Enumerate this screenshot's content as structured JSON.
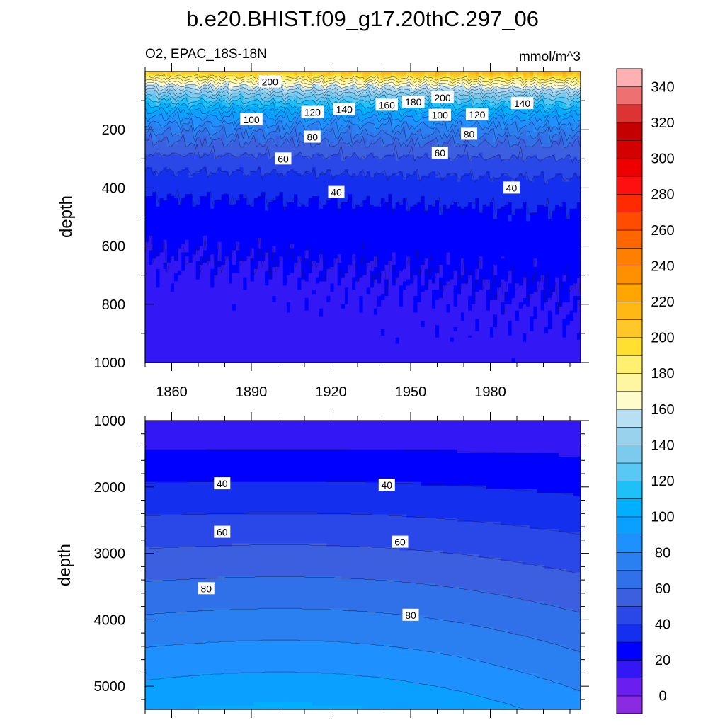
{
  "chart_data": {
    "type": "contour",
    "title": "b.e20.BHIST.f09_g17.20thC.297_06",
    "variable_label": "O2, EPAC_18S-18N",
    "units": "mmol/m^3",
    "colorbar": {
      "levels": [
        0,
        10,
        20,
        30,
        40,
        50,
        60,
        70,
        80,
        90,
        100,
        110,
        120,
        130,
        140,
        150,
        160,
        170,
        180,
        190,
        200,
        210,
        220,
        230,
        240,
        250,
        260,
        270,
        280,
        290,
        300,
        310,
        320,
        330,
        340,
        350
      ],
      "tick_labels": [
        "0",
        "20",
        "40",
        "60",
        "80",
        "100",
        "120",
        "140",
        "160",
        "180",
        "200",
        "220",
        "240",
        "260",
        "280",
        "300",
        "320",
        "340"
      ],
      "colors": [
        "#8a2be2",
        "#6a1ef0",
        "#3318f5",
        "#0000ff",
        "#1430ee",
        "#2a48e8",
        "#3c5fe0",
        "#3070e8",
        "#2a80f0",
        "#1e90ff",
        "#0aa0ff",
        "#00b0ff",
        "#1ec0f8",
        "#5ac8f4",
        "#7ccaee",
        "#98d2ec",
        "#b8dff2",
        "#fffccc",
        "#fff6a0",
        "#fff070",
        "#ffe030",
        "#ffc828",
        "#ffb814",
        "#ffa500",
        "#ff9000",
        "#ff7f00",
        "#ff6600",
        "#ff4c00",
        "#ff2a00",
        "#ff1010",
        "#ee0000",
        "#d40000",
        "#c40000",
        "#dd3333",
        "#ee7070",
        "#ffb0b0"
      ]
    },
    "panels": [
      {
        "name": "upper",
        "ylabel": "depth",
        "xlim": [
          1850,
          2014
        ],
        "ylim": [
          1000,
          0
        ],
        "x_ticks": [
          1860,
          1890,
          1920,
          1950,
          1980
        ],
        "x_tick_labels": [
          "1860",
          "1890",
          "1920",
          "1950",
          "1980"
        ],
        "y_ticks": [
          200,
          400,
          600,
          800,
          1000
        ],
        "y_tick_labels": [
          "200",
          "400",
          "600",
          "800",
          "1000"
        ],
        "contour_labels": [
          {
            "text": "200",
            "x": 1897,
            "depth": 35
          },
          {
            "text": "100",
            "x": 1890,
            "depth": 165
          },
          {
            "text": "120",
            "x": 1913,
            "depth": 140
          },
          {
            "text": "140",
            "x": 1925,
            "depth": 130
          },
          {
            "text": "160",
            "x": 1941,
            "depth": 115
          },
          {
            "text": "180",
            "x": 1951,
            "depth": 105
          },
          {
            "text": "200",
            "x": 1962,
            "depth": 90
          },
          {
            "text": "100",
            "x": 1961,
            "depth": 150
          },
          {
            "text": "120",
            "x": 1975,
            "depth": 148
          },
          {
            "text": "140",
            "x": 1992,
            "depth": 110
          },
          {
            "text": "80",
            "x": 1913,
            "depth": 225
          },
          {
            "text": "80",
            "x": 1972,
            "depth": 215
          },
          {
            "text": "60",
            "x": 1902,
            "depth": 300
          },
          {
            "text": "60",
            "x": 1961,
            "depth": 280
          },
          {
            "text": "40",
            "x": 1922,
            "depth": 415
          },
          {
            "text": "40",
            "x": 1988,
            "depth": 400
          }
        ]
      },
      {
        "name": "lower",
        "ylabel": "depth",
        "xlim": [
          1850,
          2014
        ],
        "ylim": [
          5350,
          1000
        ],
        "y_ticks": [
          1000,
          2000,
          3000,
          4000,
          5000
        ],
        "y_tick_labels": [
          "1000",
          "2000",
          "3000",
          "4000",
          "5000"
        ],
        "contour_labels": [
          {
            "text": "40",
            "x": 1879,
            "depth": 1950
          },
          {
            "text": "40",
            "x": 1941,
            "depth": 1970
          },
          {
            "text": "60",
            "x": 1879,
            "depth": 2680
          },
          {
            "text": "60",
            "x": 1946,
            "depth": 2830
          },
          {
            "text": "80",
            "x": 1873,
            "depth": 3530
          },
          {
            "text": "80",
            "x": 1950,
            "depth": 3930
          }
        ]
      }
    ]
  }
}
